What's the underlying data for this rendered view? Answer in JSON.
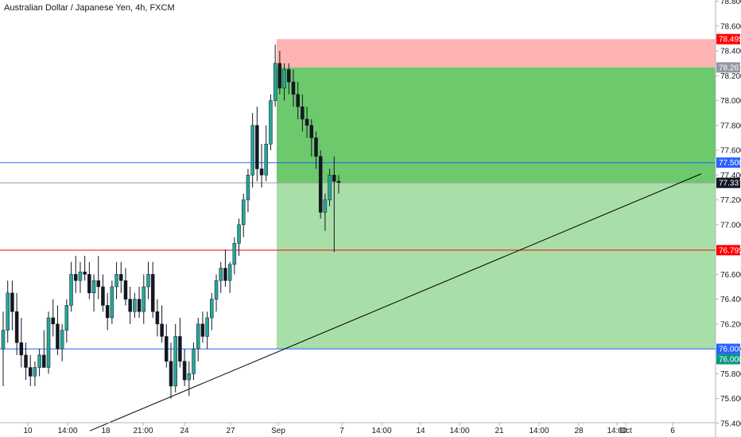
{
  "header": {
    "title": "Australian Dollar / Japanese Yen, 4h, FXCM"
  },
  "colors": {
    "up_candle": "#26a69a",
    "down_candle": "#131722",
    "stop_zone": "#ffb3b3",
    "target_zone_upper": "#6cc96c",
    "target_zone_lower": "#a8dfa8",
    "blue_line": "#2962ff",
    "red_line": "#ff0000",
    "price_line": "#9e9e9e",
    "trendline": "#000000"
  },
  "chart_data": {
    "type": "candlestick",
    "symbol": "AUDJPY",
    "timeframe": "4h",
    "source": "FXCM",
    "y_axis": {
      "ylim": [
        75.29,
        78.81
      ],
      "ticks": [
        "78.800",
        "78.600",
        "78.400",
        "78.200",
        "78.000",
        "77.800",
        "77.600",
        "77.400",
        "77.200",
        "77.000",
        "76.800",
        "76.600",
        "76.400",
        "76.200",
        "76.000",
        "75.800",
        "75.600",
        "75.400"
      ],
      "position": "right"
    },
    "x_axis": {
      "tick_labels": [
        "10",
        "14:00",
        "18",
        "21:00",
        "24",
        "27",
        "Sep",
        "7",
        "14:00",
        "14",
        "14:00",
        "21",
        "14:00",
        "28",
        "14:00",
        "Oct",
        "6"
      ]
    },
    "price_badges": [
      {
        "label": "78.495",
        "value": 78.495,
        "style": "red"
      },
      {
        "label": "78.267",
        "value": 78.267,
        "style": "gray"
      },
      {
        "label": "77.500",
        "value": 77.5,
        "style": "blue"
      },
      {
        "label": "77.337",
        "value": 77.337,
        "style": "black"
      },
      {
        "label": "76.795",
        "value": 76.795,
        "style": "red"
      },
      {
        "label": "76.000",
        "value": 76.0,
        "style": "blue"
      },
      {
        "label": "76.000",
        "value": 76.0,
        "style": "green"
      }
    ],
    "horizontal_lines": [
      {
        "value": 77.5,
        "color": "blue"
      },
      {
        "value": 77.337,
        "color": "gray"
      },
      {
        "value": 76.795,
        "color": "red"
      },
      {
        "value": 76.0,
        "color": "blue"
      }
    ],
    "position_tool": {
      "entry": 78.267,
      "stop": 78.495,
      "target": 76.0,
      "current": 77.337
    },
    "trendline": {
      "from": 75.34,
      "to": 77.41
    },
    "candles": [
      [
        76.0,
        76.3,
        75.7,
        76.15
      ],
      [
        76.15,
        76.55,
        76.05,
        76.45
      ],
      [
        76.45,
        76.55,
        76.15,
        76.3
      ],
      [
        76.3,
        76.45,
        75.95,
        76.05
      ],
      [
        76.05,
        76.25,
        75.85,
        75.95
      ],
      [
        75.95,
        76.05,
        75.75,
        75.85
      ],
      [
        75.85,
        75.95,
        75.7,
        75.78
      ],
      [
        75.78,
        75.9,
        75.7,
        75.85
      ],
      [
        75.85,
        76.0,
        75.78,
        75.95
      ],
      [
        75.95,
        76.15,
        75.85,
        75.85
      ],
      [
        75.85,
        76.3,
        75.8,
        76.25
      ],
      [
        76.25,
        76.4,
        76.1,
        76.2
      ],
      [
        76.2,
        76.35,
        75.95,
        76.0
      ],
      [
        76.0,
        76.2,
        75.9,
        76.15
      ],
      [
        76.15,
        76.4,
        76.05,
        76.35
      ],
      [
        76.35,
        76.7,
        76.3,
        76.6
      ],
      [
        76.6,
        76.75,
        76.45,
        76.55
      ],
      [
        76.55,
        76.7,
        76.45,
        76.62
      ],
      [
        76.62,
        76.75,
        76.55,
        76.6
      ],
      [
        76.6,
        76.7,
        76.4,
        76.45
      ],
      [
        76.45,
        76.6,
        76.3,
        76.55
      ],
      [
        76.55,
        76.75,
        76.4,
        76.5
      ],
      [
        76.5,
        76.6,
        76.3,
        76.35
      ],
      [
        76.35,
        76.45,
        76.15,
        76.25
      ],
      [
        76.25,
        76.55,
        76.2,
        76.5
      ],
      [
        76.5,
        76.7,
        76.4,
        76.6
      ],
      [
        76.6,
        76.7,
        76.45,
        76.55
      ],
      [
        76.55,
        76.65,
        76.35,
        76.4
      ],
      [
        76.4,
        76.5,
        76.2,
        76.3
      ],
      [
        76.3,
        76.45,
        76.25,
        76.4
      ],
      [
        76.4,
        76.5,
        76.25,
        76.3
      ],
      [
        76.3,
        76.6,
        76.2,
        76.5
      ],
      [
        76.5,
        76.7,
        76.4,
        76.6
      ],
      [
        76.6,
        76.7,
        76.25,
        76.3
      ],
      [
        76.3,
        76.4,
        76.1,
        76.2
      ],
      [
        76.2,
        76.35,
        76.05,
        76.1
      ],
      [
        76.1,
        76.2,
        75.85,
        75.9
      ],
      [
        75.9,
        76.05,
        75.6,
        75.7
      ],
      [
        75.7,
        76.2,
        75.65,
        76.1
      ],
      [
        76.1,
        76.25,
        75.85,
        75.9
      ],
      [
        75.9,
        76.0,
        75.7,
        75.75
      ],
      [
        75.75,
        75.9,
        75.62,
        75.8
      ],
      [
        75.8,
        76.05,
        75.75,
        76.0
      ],
      [
        76.0,
        76.25,
        75.9,
        76.2
      ],
      [
        76.2,
        76.3,
        76.05,
        76.1
      ],
      [
        76.1,
        76.3,
        76.0,
        76.25
      ],
      [
        76.25,
        76.45,
        76.15,
        76.4
      ],
      [
        76.4,
        76.6,
        76.3,
        76.55
      ],
      [
        76.55,
        76.7,
        76.45,
        76.65
      ],
      [
        76.65,
        76.8,
        76.5,
        76.55
      ],
      [
        76.55,
        76.7,
        76.45,
        76.68
      ],
      [
        76.68,
        76.9,
        76.6,
        76.85
      ],
      [
        76.85,
        77.05,
        76.75,
        77.0
      ],
      [
        77.0,
        77.25,
        76.9,
        77.2
      ],
      [
        77.2,
        77.45,
        77.1,
        77.4
      ],
      [
        77.4,
        77.9,
        77.3,
        77.8
      ],
      [
        77.8,
        77.95,
        77.35,
        77.45
      ],
      [
        77.45,
        77.65,
        77.3,
        77.4
      ],
      [
        77.4,
        77.8,
        77.35,
        77.65
      ],
      [
        77.65,
        78.05,
        77.6,
        78.0
      ],
      [
        78.0,
        78.45,
        77.95,
        78.3
      ],
      [
        78.3,
        78.4,
        78.05,
        78.1
      ],
      [
        78.1,
        78.3,
        78.0,
        78.25
      ],
      [
        78.25,
        78.3,
        78.05,
        78.15
      ],
      [
        78.15,
        78.25,
        77.95,
        78.05
      ],
      [
        78.05,
        78.15,
        77.85,
        77.95
      ],
      [
        77.95,
        78.05,
        77.75,
        77.85
      ],
      [
        77.85,
        77.95,
        77.7,
        77.8
      ],
      [
        77.8,
        77.85,
        77.55,
        77.7
      ],
      [
        77.7,
        77.75,
        77.45,
        77.55
      ],
      [
        77.55,
        77.6,
        77.05,
        77.1
      ],
      [
        77.1,
        77.25,
        76.95,
        77.2
      ],
      [
        77.2,
        77.45,
        77.15,
        77.4
      ],
      [
        77.4,
        77.55,
        76.78,
        77.35
      ],
      [
        77.35,
        77.4,
        77.25,
        77.34
      ]
    ]
  }
}
